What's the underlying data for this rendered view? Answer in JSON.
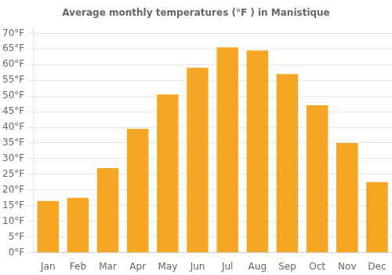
{
  "chart_data": {
    "type": "bar",
    "title": "Average monthly temperatures (°F ) in Manistique",
    "categories": [
      "Jan",
      "Feb",
      "Mar",
      "Apr",
      "May",
      "Jun",
      "Jul",
      "Aug",
      "Sep",
      "Oct",
      "Nov",
      "Dec"
    ],
    "values": [
      16.5,
      17.5,
      27,
      39.5,
      50.5,
      59,
      65.5,
      64.5,
      57,
      47,
      35,
      22.5
    ],
    "color": "#F5A623",
    "ylim": [
      0,
      72
    ],
    "yticks": [
      {
        "value": 0,
        "label": "0°F"
      },
      {
        "value": 5,
        "label": "5°F"
      },
      {
        "value": 10,
        "label": "10°F"
      },
      {
        "value": 15,
        "label": "15°F"
      },
      {
        "value": 20,
        "label": "20°F"
      },
      {
        "value": 25,
        "label": "25°F"
      },
      {
        "value": 30,
        "label": "30°F"
      },
      {
        "value": 35,
        "label": "35°F"
      },
      {
        "value": 40,
        "label": "40°F"
      },
      {
        "value": 45,
        "label": "45°F"
      },
      {
        "value": 50,
        "label": "50°F"
      },
      {
        "value": 55,
        "label": "55°F"
      },
      {
        "value": 60,
        "label": "60°F"
      },
      {
        "value": 65,
        "label": "65°F"
      },
      {
        "value": 70,
        "label": "70°F"
      }
    ],
    "grid": true
  }
}
